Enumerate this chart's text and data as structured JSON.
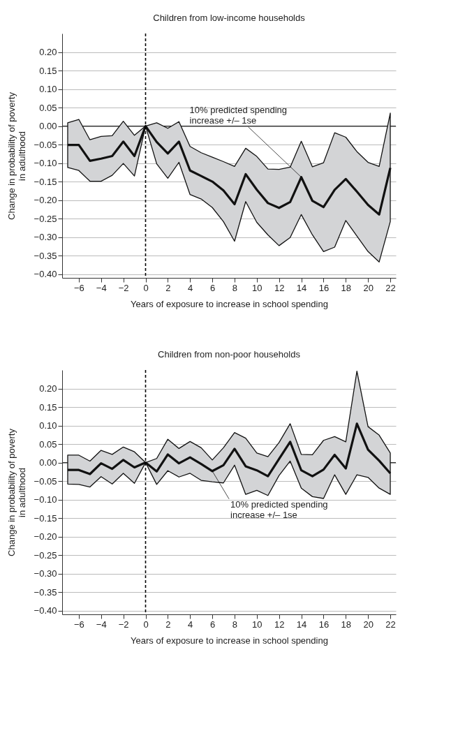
{
  "chart_data": [
    {
      "type": "line",
      "title": "Children from low-income households",
      "xlabel": "Years of exposure to increase in school spending",
      "ylabel": "Change in probability of poverty in adulthood",
      "x": [
        -7,
        -6,
        -5,
        -4,
        -3,
        -2,
        -1,
        0,
        1,
        2,
        3,
        4,
        5,
        6,
        7,
        8,
        9,
        10,
        11,
        12,
        13,
        14,
        15,
        16,
        17,
        18,
        19,
        20,
        21,
        22
      ],
      "series": [
        {
          "color": "#111111",
          "values": [
            -0.051,
            -0.051,
            -0.094,
            -0.088,
            -0.081,
            -0.042,
            -0.081,
            0,
            -0.043,
            -0.074,
            -0.042,
            -0.12,
            -0.135,
            -0.15,
            -0.174,
            -0.211,
            -0.13,
            -0.172,
            -0.208,
            -0.221,
            -0.205,
            -0.138,
            -0.202,
            -0.219,
            -0.172,
            -0.143,
            -0.177,
            -0.213,
            -0.239,
            -0.113
          ],
          "lower": [
            -0.112,
            -0.12,
            -0.149,
            -0.149,
            -0.133,
            -0.101,
            -0.135,
            0,
            -0.102,
            -0.141,
            -0.098,
            -0.185,
            -0.197,
            -0.22,
            -0.258,
            -0.311,
            -0.204,
            -0.26,
            -0.294,
            -0.323,
            -0.301,
            -0.239,
            -0.294,
            -0.339,
            -0.327,
            -0.255,
            -0.297,
            -0.339,
            -0.367,
            -0.258
          ],
          "upper": [
            0.009,
            0.018,
            -0.037,
            -0.028,
            -0.026,
            0.013,
            -0.025,
            0,
            0.009,
            -0.006,
            0.012,
            -0.055,
            -0.072,
            -0.084,
            -0.096,
            -0.109,
            -0.06,
            -0.082,
            -0.116,
            -0.117,
            -0.111,
            -0.041,
            -0.11,
            -0.099,
            -0.018,
            -0.03,
            -0.069,
            -0.098,
            -0.109,
            0.035
          ]
        }
      ],
      "xlim": [
        -7.5,
        22.5
      ],
      "xticks": [
        {
          "value": -6,
          "label": "−6"
        },
        {
          "value": -4,
          "label": "−4"
        },
        {
          "value": -2,
          "label": "−2"
        },
        0,
        2,
        4,
        6,
        8,
        10,
        12,
        14,
        16,
        18,
        20,
        22
      ],
      "ylim": [
        -0.41,
        0.25
      ],
      "yticks": [
        {
          "value": -0.4,
          "label": "−0.40"
        },
        {
          "value": -0.35,
          "label": "−0.35"
        },
        {
          "value": -0.3,
          "label": "−0.30"
        },
        {
          "value": -0.25,
          "label": "−0.25"
        },
        {
          "value": -0.2,
          "label": "−0.20"
        },
        {
          "value": -0.15,
          "label": "−0.15"
        },
        {
          "value": -0.1,
          "label": "−0.10"
        },
        {
          "value": -0.05,
          "label": "−0.05"
        },
        {
          "value": 0,
          "label": "0.00"
        },
        {
          "value": 0.05,
          "label": "0.05"
        },
        {
          "value": 0.1,
          "label": "0.10"
        },
        {
          "value": 0.15,
          "label": "0.15"
        },
        {
          "value": 0.2,
          "label": "0.20"
        }
      ],
      "grid": "y",
      "ref_lines": [
        {
          "axis": "y",
          "value": 0,
          "color": "#333333"
        },
        {
          "axis": "x",
          "value": 0,
          "line_style": "dashed",
          "color": "#000000"
        }
      ],
      "annotations": [
        {
          "text": "10% predicted spending increase +/– 1se",
          "x": 14,
          "y": -0.138
        }
      ]
    },
    {
      "type": "line",
      "title": "Children from non-poor households",
      "xlabel": "Years of exposure to increase in school spending",
      "ylabel": "Change in probability of poverty in adulthood",
      "x": [
        -7,
        -6,
        -5,
        -4,
        -3,
        -2,
        -1,
        0,
        1,
        2,
        3,
        4,
        5,
        6,
        7,
        8,
        9,
        10,
        11,
        12,
        13,
        14,
        15,
        16,
        17,
        18,
        19,
        20,
        21,
        22
      ],
      "series": [
        {
          "color": "#111111",
          "values": [
            -0.02,
            -0.02,
            -0.031,
            -0.002,
            -0.017,
            0.007,
            -0.013,
            0,
            -0.024,
            0.022,
            -0.002,
            0.014,
            -0.004,
            -0.023,
            -0.007,
            0.037,
            -0.01,
            -0.021,
            -0.037,
            0.01,
            0.056,
            -0.021,
            -0.037,
            -0.019,
            0.021,
            -0.016,
            0.105,
            0.035,
            0.005,
            -0.029
          ],
          "lower": [
            -0.058,
            -0.059,
            -0.066,
            -0.038,
            -0.058,
            -0.029,
            -0.056,
            0,
            -0.059,
            -0.022,
            -0.039,
            -0.029,
            -0.048,
            -0.052,
            -0.055,
            -0.007,
            -0.086,
            -0.075,
            -0.089,
            -0.035,
            0.004,
            -0.069,
            -0.092,
            -0.097,
            -0.033,
            -0.086,
            -0.033,
            -0.04,
            -0.069,
            -0.086
          ],
          "upper": [
            0.02,
            0.02,
            0.004,
            0.033,
            0.022,
            0.042,
            0.029,
            0,
            0.011,
            0.063,
            0.038,
            0.057,
            0.04,
            0.007,
            0.04,
            0.081,
            0.066,
            0.026,
            0.016,
            0.054,
            0.105,
            0.022,
            0.021,
            0.06,
            0.07,
            0.056,
            0.247,
            0.097,
            0.074,
            0.026
          ]
        }
      ],
      "xlim": [
        -7.5,
        22.5
      ],
      "xticks": [
        {
          "value": -6,
          "label": "−6"
        },
        {
          "value": -4,
          "label": "−4"
        },
        {
          "value": -2,
          "label": "−2"
        },
        0,
        2,
        4,
        6,
        8,
        10,
        12,
        14,
        16,
        18,
        20,
        22
      ],
      "ylim": [
        -0.41,
        0.25
      ],
      "yticks": [
        {
          "value": -0.4,
          "label": "−0.40"
        },
        {
          "value": -0.35,
          "label": "−0.35"
        },
        {
          "value": -0.3,
          "label": "−0.30"
        },
        {
          "value": -0.25,
          "label": "−0.25"
        },
        {
          "value": -0.2,
          "label": "−0.20"
        },
        {
          "value": -0.15,
          "label": "−0.15"
        },
        {
          "value": -0.1,
          "label": "−0.10"
        },
        {
          "value": -0.05,
          "label": "−0.05"
        },
        {
          "value": 0,
          "label": "0.00"
        },
        {
          "value": 0.05,
          "label": "0.05"
        },
        {
          "value": 0.1,
          "label": "0.10"
        },
        {
          "value": 0.15,
          "label": "0.15"
        },
        {
          "value": 0.2,
          "label": "0.20"
        }
      ],
      "grid": "y",
      "ref_lines": [
        {
          "axis": "y",
          "value": 0,
          "color": "#333333"
        },
        {
          "axis": "x",
          "value": 0,
          "line_style": "dashed",
          "color": "#000000"
        }
      ],
      "annotations": [
        {
          "text": "10% predicted spending increase +/– 1se",
          "x": 6,
          "y": -0.023
        }
      ]
    }
  ]
}
